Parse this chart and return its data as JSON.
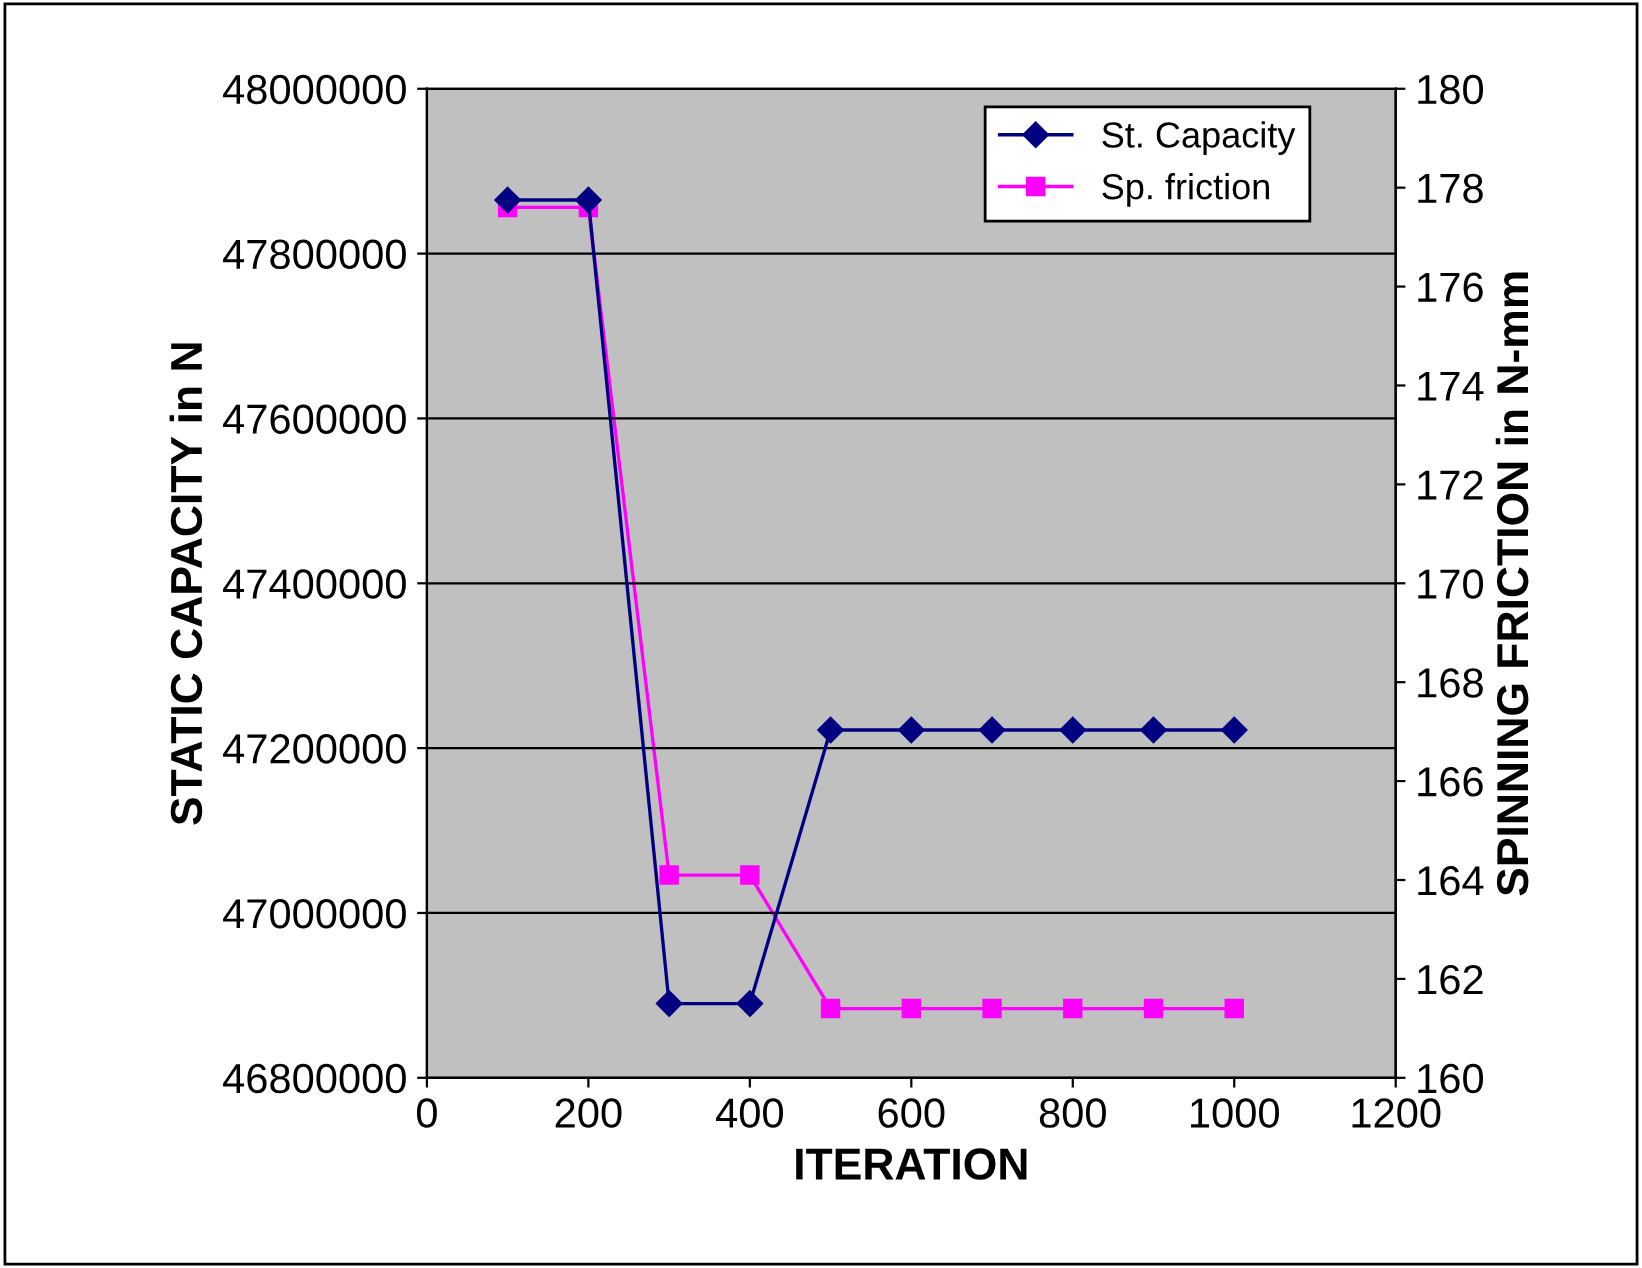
{
  "chart_data": {
    "type": "line",
    "xlabel": "ITERATION",
    "ylabel": "STATIC CAPACITY in N",
    "y2label": "SPINNING FRICTION in N-mm",
    "x": [
      100,
      200,
      300,
      400,
      500,
      600,
      700,
      800,
      900,
      1000
    ],
    "series": [
      {
        "name": "St. Capacity",
        "color": "#000080",
        "marker": "diamond",
        "values": [
          47865000,
          47865000,
          46890000,
          46890000,
          47222000,
          47222000,
          47222000,
          47222000,
          47222000,
          47222000
        ]
      },
      {
        "name": "Sp. friction",
        "color": "#ff00ff",
        "marker": "square",
        "axis": "y2",
        "values": [
          177.6,
          177.6,
          164.1,
          164.1,
          161.4,
          161.4,
          161.4,
          161.4,
          161.4,
          161.4
        ]
      }
    ],
    "xlim": [
      0,
      1200
    ],
    "xticks": [
      0,
      200,
      400,
      600,
      800,
      1000,
      1200
    ],
    "ylim": [
      46800000,
      48000000
    ],
    "yticks": [
      46800000,
      47000000,
      47200000,
      47400000,
      47600000,
      47800000,
      48000000
    ],
    "y2lim": [
      160,
      180
    ],
    "y2ticks": [
      160,
      162,
      164,
      166,
      168,
      170,
      172,
      174,
      176,
      178,
      180
    ],
    "grid": "y",
    "legend": "top right"
  }
}
